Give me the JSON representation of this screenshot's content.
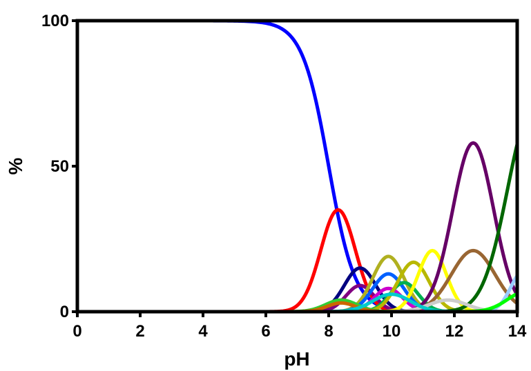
{
  "chart_data": {
    "type": "line",
    "title": "",
    "xlabel": "pH",
    "ylabel": "%",
    "xlim": [
      0,
      14
    ],
    "ylim": [
      0,
      100
    ],
    "x_ticks": [
      "0",
      "2",
      "4",
      "6",
      "8",
      "10",
      "12",
      "14"
    ],
    "y_ticks": [
      "0",
      "50",
      "100"
    ],
    "grid": false,
    "legend": "none",
    "series": [
      {
        "color": "#0000ff",
        "kind": "sigmoid",
        "params": {
          "midpoint": 8.0,
          "width": 0.42,
          "top": 100
        }
      },
      {
        "color": "#ff0000",
        "kind": "peak",
        "params": {
          "center": 8.3,
          "sigma": 0.55,
          "height": 35
        }
      },
      {
        "color": "#000080",
        "kind": "peak",
        "params": {
          "center": 9.0,
          "sigma": 0.5,
          "height": 15
        }
      },
      {
        "color": "#800080",
        "kind": "peak",
        "params": {
          "center": 9.0,
          "sigma": 0.45,
          "height": 9
        }
      },
      {
        "color": "#b0b020",
        "kind": "peak",
        "params": {
          "center": 9.9,
          "sigma": 0.5,
          "height": 19
        }
      },
      {
        "color": "#0060ff",
        "kind": "peak",
        "params": {
          "center": 9.9,
          "sigma": 0.5,
          "height": 13
        }
      },
      {
        "color": "#cc00cc",
        "kind": "peak",
        "params": {
          "center": 9.9,
          "sigma": 0.45,
          "height": 8
        }
      },
      {
        "color": "#00b050",
        "kind": "peak",
        "params": {
          "center": 10.4,
          "sigma": 0.45,
          "height": 10
        }
      },
      {
        "color": "#b8b800",
        "kind": "peak",
        "params": {
          "center": 10.7,
          "sigma": 0.5,
          "height": 17
        }
      },
      {
        "color": "#ffff00",
        "kind": "peak",
        "params": {
          "center": 11.3,
          "sigma": 0.45,
          "height": 21
        }
      },
      {
        "color": "#996633",
        "kind": "peak",
        "params": {
          "center": 12.6,
          "sigma": 0.7,
          "height": 21
        }
      },
      {
        "color": "#660066",
        "kind": "peak",
        "params": {
          "center": 12.6,
          "sigma": 0.65,
          "height": 58
        }
      },
      {
        "color": "#006600",
        "kind": "peak",
        "params": {
          "center": 14.5,
          "sigma": 0.8,
          "height": 70
        }
      },
      {
        "color": "#33cc33",
        "kind": "peak",
        "params": {
          "center": 8.4,
          "sigma": 0.5,
          "height": 4
        }
      },
      {
        "color": "#cc6600",
        "kind": "peak",
        "params": {
          "center": 8.4,
          "sigma": 0.45,
          "height": 3
        }
      },
      {
        "color": "#cccccc",
        "kind": "peak",
        "params": {
          "center": 11.8,
          "sigma": 0.6,
          "height": 4
        }
      },
      {
        "color": "#00cccc",
        "kind": "peak",
        "params": {
          "center": 10.0,
          "sigma": 0.6,
          "height": 6
        }
      },
      {
        "color": "#99ccff",
        "kind": "peak",
        "params": {
          "center": 14.2,
          "sigma": 0.4,
          "height": 14
        }
      },
      {
        "color": "#00ff00",
        "kind": "peak",
        "params": {
          "center": 14.3,
          "sigma": 0.6,
          "height": 7
        }
      }
    ]
  }
}
